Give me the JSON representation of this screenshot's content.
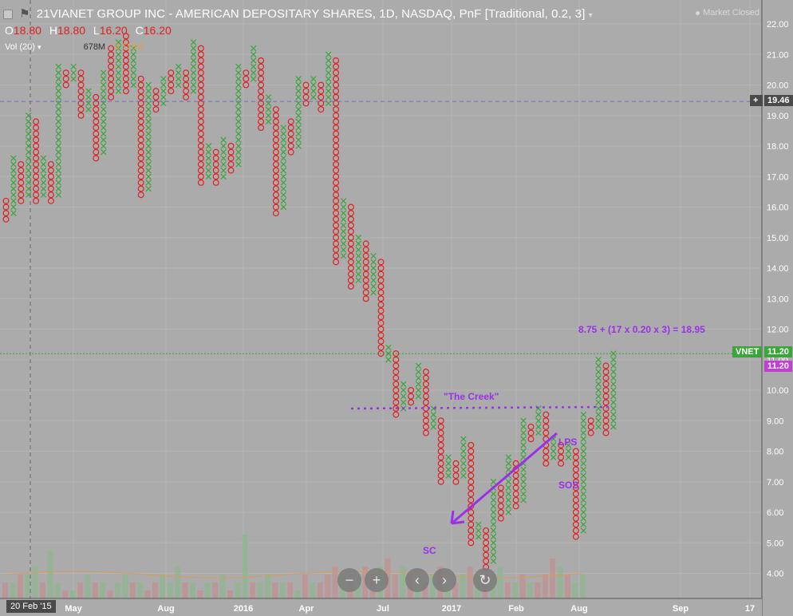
{
  "header": {
    "title": "21VIANET GROUP INC - AMERICAN DEPOSITARY SHARES, 1D, NASDAQ, PnF [Traditional, 0.2, 3]",
    "ohlc": [
      {
        "k": "O",
        "v": "18.80"
      },
      {
        "k": "H",
        "v": "18.80"
      },
      {
        "k": "L",
        "v": "16.20"
      },
      {
        "k": "C",
        "v": "16.20"
      }
    ],
    "vol_label": "Vol (20)",
    "vol_value": "678M",
    "vol_ma": "3.716M",
    "market_status": "Market Closed"
  },
  "price_axis": {
    "ticks": [
      "22.00",
      "21.00",
      "20.00",
      "19.00",
      "18.00",
      "17.00",
      "16.00",
      "15.00",
      "14.00",
      "13.00",
      "12.00",
      "11.00",
      "10.00",
      "9.00",
      "8.00",
      "7.00",
      "6.00",
      "5.00",
      "4.00"
    ],
    "crosshair_price": "19.46",
    "last_price_symbol": "VNET",
    "last_price": "11.20",
    "last_price2": "11.20"
  },
  "time_axis": {
    "labels": [
      {
        "text": "Feb '15",
        "at": 0
      },
      {
        "text": "May",
        "at": 1
      },
      {
        "text": "Aug",
        "at": 2
      },
      {
        "text": "2016",
        "at": 3
      },
      {
        "text": "Apr",
        "at": 4
      },
      {
        "text": "Jul",
        "at": 5
      },
      {
        "text": "2017",
        "at": 6
      },
      {
        "text": "Feb",
        "at": 7
      },
      {
        "text": "Aug",
        "at": 8
      },
      {
        "text": "Sep",
        "at": 9
      },
      {
        "text": "17",
        "at": 10
      }
    ],
    "crosshair_date": "20 Feb '15"
  },
  "annotations": {
    "target": "8.75 + (17 x 0.20 x 3) = 18.95",
    "creek": "\"The Creek\"",
    "lps": "LPS",
    "sos": "SOS",
    "sc": "SC"
  },
  "nav": {
    "zoom_out": "−",
    "zoom_in": "+",
    "back": "‹",
    "forward": "›",
    "reset": "↻"
  },
  "colors": {
    "up": "#3aa53a",
    "down": "#e02020",
    "background": "#ababab",
    "annotation": "#9a30e8",
    "last_price": "#3aa53a",
    "last_price2": "#c040d0"
  },
  "chart_data": {
    "type": "point-and-figure",
    "box_size": 0.2,
    "reversal": 3,
    "ylim": [
      4.0,
      22.0
    ],
    "columns": [
      {
        "t": "O",
        "hi": 16.2,
        "lo": 15.6
      },
      {
        "t": "X",
        "hi": 17.6,
        "lo": 15.8
      },
      {
        "t": "O",
        "hi": 17.4,
        "lo": 16.2
      },
      {
        "t": "X",
        "hi": 19.0,
        "lo": 16.4
      },
      {
        "t": "O",
        "hi": 18.8,
        "lo": 16.2
      },
      {
        "t": "X",
        "hi": 17.6,
        "lo": 16.4
      },
      {
        "t": "O",
        "hi": 17.4,
        "lo": 16.2
      },
      {
        "t": "X",
        "hi": 20.6,
        "lo": 16.4
      },
      {
        "t": "O",
        "hi": 20.4,
        "lo": 20.0
      },
      {
        "t": "X",
        "hi": 20.6,
        "lo": 20.2
      },
      {
        "t": "O",
        "hi": 20.4,
        "lo": 19.0
      },
      {
        "t": "X",
        "hi": 19.8,
        "lo": 19.2
      },
      {
        "t": "O",
        "hi": 19.6,
        "lo": 17.6
      },
      {
        "t": "X",
        "hi": 20.4,
        "lo": 17.8
      },
      {
        "t": "O",
        "hi": 21.2,
        "lo": 19.6
      },
      {
        "t": "X",
        "hi": 21.4,
        "lo": 19.8
      },
      {
        "t": "O",
        "hi": 21.6,
        "lo": 19.8
      },
      {
        "t": "X",
        "hi": 21.2,
        "lo": 20.0
      },
      {
        "t": "O",
        "hi": 20.2,
        "lo": 16.4
      },
      {
        "t": "X",
        "hi": 20.0,
        "lo": 16.6
      },
      {
        "t": "O",
        "hi": 19.8,
        "lo": 19.2
      },
      {
        "t": "X",
        "hi": 20.2,
        "lo": 19.4
      },
      {
        "t": "O",
        "hi": 20.4,
        "lo": 19.8
      },
      {
        "t": "X",
        "hi": 20.6,
        "lo": 20.0
      },
      {
        "t": "O",
        "hi": 20.4,
        "lo": 19.6
      },
      {
        "t": "X",
        "hi": 21.4,
        "lo": 19.8
      },
      {
        "t": "O",
        "hi": 21.2,
        "lo": 16.8
      },
      {
        "t": "X",
        "hi": 18.0,
        "lo": 17.0
      },
      {
        "t": "O",
        "hi": 17.8,
        "lo": 16.8
      },
      {
        "t": "X",
        "hi": 18.2,
        "lo": 17.0
      },
      {
        "t": "O",
        "hi": 18.0,
        "lo": 17.2
      },
      {
        "t": "X",
        "hi": 20.6,
        "lo": 17.4
      },
      {
        "t": "O",
        "hi": 20.4,
        "lo": 20.0
      },
      {
        "t": "X",
        "hi": 21.2,
        "lo": 20.2
      },
      {
        "t": "O",
        "hi": 20.8,
        "lo": 18.6
      },
      {
        "t": "X",
        "hi": 19.6,
        "lo": 18.8
      },
      {
        "t": "O",
        "hi": 19.2,
        "lo": 15.8
      },
      {
        "t": "X",
        "hi": 18.6,
        "lo": 16.0
      },
      {
        "t": "O",
        "hi": 18.8,
        "lo": 17.8
      },
      {
        "t": "X",
        "hi": 20.2,
        "lo": 18.0
      },
      {
        "t": "O",
        "hi": 20.0,
        "lo": 19.4
      },
      {
        "t": "X",
        "hi": 20.2,
        "lo": 19.6
      },
      {
        "t": "O",
        "hi": 20.0,
        "lo": 19.2
      },
      {
        "t": "X",
        "hi": 21.0,
        "lo": 19.4
      },
      {
        "t": "O",
        "hi": 20.8,
        "lo": 14.2
      },
      {
        "t": "X",
        "hi": 16.2,
        "lo": 14.4
      },
      {
        "t": "O",
        "hi": 16.0,
        "lo": 13.4
      },
      {
        "t": "X",
        "hi": 15.0,
        "lo": 13.6
      },
      {
        "t": "O",
        "hi": 14.8,
        "lo": 13.0
      },
      {
        "t": "X",
        "hi": 14.4,
        "lo": 13.2
      },
      {
        "t": "O",
        "hi": 14.2,
        "lo": 11.2
      },
      {
        "t": "X",
        "hi": 11.4,
        "lo": 11.0
      },
      {
        "t": "O",
        "hi": 11.2,
        "lo": 9.2
      },
      {
        "t": "X",
        "hi": 10.2,
        "lo": 9.4
      },
      {
        "t": "O",
        "hi": 10.0,
        "lo": 9.6
      },
      {
        "t": "X",
        "hi": 10.8,
        "lo": 9.8
      },
      {
        "t": "O",
        "hi": 10.6,
        "lo": 8.6
      },
      {
        "t": "X",
        "hi": 9.4,
        "lo": 8.8
      },
      {
        "t": "O",
        "hi": 9.0,
        "lo": 7.0
      },
      {
        "t": "X",
        "hi": 7.8,
        "lo": 7.2
      },
      {
        "t": "O",
        "hi": 7.6,
        "lo": 7.0
      },
      {
        "t": "X",
        "hi": 8.4,
        "lo": 7.2
      },
      {
        "t": "O",
        "hi": 8.2,
        "lo": 5.0
      },
      {
        "t": "X",
        "hi": 5.6,
        "lo": 5.2
      },
      {
        "t": "O",
        "hi": 5.4,
        "lo": 4.2
      },
      {
        "t": "X",
        "hi": 7.0,
        "lo": 4.4
      },
      {
        "t": "O",
        "hi": 6.8,
        "lo": 5.8
      },
      {
        "t": "X",
        "hi": 7.8,
        "lo": 6.0
      },
      {
        "t": "O",
        "hi": 7.6,
        "lo": 6.2
      },
      {
        "t": "X",
        "hi": 9.0,
        "lo": 6.4
      },
      {
        "t": "O",
        "hi": 8.8,
        "lo": 8.4
      },
      {
        "t": "X",
        "hi": 9.4,
        "lo": 8.6
      },
      {
        "t": "O",
        "hi": 9.2,
        "lo": 7.6
      },
      {
        "t": "X",
        "hi": 8.4,
        "lo": 7.8
      },
      {
        "t": "O",
        "hi": 8.2,
        "lo": 7.6
      },
      {
        "t": "X",
        "hi": 8.2,
        "lo": 7.8
      },
      {
        "t": "O",
        "hi": 8.0,
        "lo": 5.2
      },
      {
        "t": "X",
        "hi": 9.2,
        "lo": 5.4
      },
      {
        "t": "O",
        "hi": 9.0,
        "lo": 8.6
      },
      {
        "t": "X",
        "hi": 11.0,
        "lo": 8.8
      },
      {
        "t": "O",
        "hi": 10.8,
        "lo": 8.6
      },
      {
        "t": "X",
        "hi": 11.2,
        "lo": 8.8
      }
    ],
    "volume_bars": [
      {
        "v": 2,
        "c": "r"
      },
      {
        "v": 2,
        "c": "g"
      },
      {
        "v": 3,
        "c": "r"
      },
      {
        "v": 3,
        "c": "g"
      },
      {
        "v": 4,
        "c": "g"
      },
      {
        "v": 2,
        "c": "r"
      },
      {
        "v": 6,
        "c": "g"
      },
      {
        "v": 2,
        "c": "g"
      },
      {
        "v": 1,
        "c": "r"
      },
      {
        "v": 1,
        "c": "g"
      },
      {
        "v": 2,
        "c": "r"
      },
      {
        "v": 3,
        "c": "g"
      },
      {
        "v": 2,
        "c": "r"
      },
      {
        "v": 2,
        "c": "g"
      },
      {
        "v": 1,
        "c": "r"
      },
      {
        "v": 2,
        "c": "g"
      },
      {
        "v": 3,
        "c": "g"
      },
      {
        "v": 2,
        "c": "r"
      },
      {
        "v": 2,
        "c": "g"
      },
      {
        "v": 1,
        "c": "r"
      },
      {
        "v": 2,
        "c": "r"
      },
      {
        "v": 3,
        "c": "g"
      },
      {
        "v": 2,
        "c": "g"
      },
      {
        "v": 4,
        "c": "g"
      },
      {
        "v": 2,
        "c": "r"
      },
      {
        "v": 2,
        "c": "g"
      },
      {
        "v": 1,
        "c": "r"
      },
      {
        "v": 2,
        "c": "g"
      },
      {
        "v": 2,
        "c": "r"
      },
      {
        "v": 3,
        "c": "g"
      },
      {
        "v": 1,
        "c": "r"
      },
      {
        "v": 2,
        "c": "g"
      },
      {
        "v": 8,
        "c": "g"
      },
      {
        "v": 2,
        "c": "r"
      },
      {
        "v": 2,
        "c": "g"
      },
      {
        "v": 3,
        "c": "g"
      },
      {
        "v": 2,
        "c": "r"
      },
      {
        "v": 2,
        "c": "g"
      },
      {
        "v": 2,
        "c": "r"
      },
      {
        "v": 1,
        "c": "g"
      },
      {
        "v": 3,
        "c": "r"
      },
      {
        "v": 2,
        "c": "g"
      },
      {
        "v": 2,
        "c": "r"
      },
      {
        "v": 3,
        "c": "r"
      },
      {
        "v": 4,
        "c": "r"
      },
      {
        "v": 3,
        "c": "g"
      },
      {
        "v": 2,
        "c": "r"
      },
      {
        "v": 2,
        "c": "g"
      },
      {
        "v": 4,
        "c": "r"
      },
      {
        "v": 3,
        "c": "r"
      },
      {
        "v": 4,
        "c": "g"
      },
      {
        "v": 5,
        "c": "r"
      },
      {
        "v": 3,
        "c": "r"
      },
      {
        "v": 4,
        "c": "g"
      },
      {
        "v": 3,
        "c": "r"
      },
      {
        "v": 2,
        "c": "g"
      },
      {
        "v": 2,
        "c": "r"
      },
      {
        "v": 3,
        "c": "g"
      },
      {
        "v": 4,
        "c": "r"
      },
      {
        "v": 3,
        "c": "g"
      },
      {
        "v": 2,
        "c": "r"
      },
      {
        "v": 3,
        "c": "g"
      },
      {
        "v": 4,
        "c": "r"
      },
      {
        "v": 3,
        "c": "g"
      },
      {
        "v": 3,
        "c": "r"
      },
      {
        "v": 2,
        "c": "g"
      },
      {
        "v": 4,
        "c": "g"
      },
      {
        "v": 2,
        "c": "r"
      },
      {
        "v": 2,
        "c": "g"
      },
      {
        "v": 3,
        "c": "r"
      },
      {
        "v": 2,
        "c": "g"
      },
      {
        "v": 2,
        "c": "r"
      },
      {
        "v": 3,
        "c": "r"
      },
      {
        "v": 5,
        "c": "r"
      },
      {
        "v": 4,
        "c": "g"
      },
      {
        "v": 3,
        "c": "r"
      },
      {
        "v": 2,
        "c": "g"
      },
      {
        "v": 3,
        "c": "g"
      }
    ],
    "reference_lines": {
      "crosshair": 19.46,
      "last": 11.2,
      "creek": 9.4
    }
  }
}
